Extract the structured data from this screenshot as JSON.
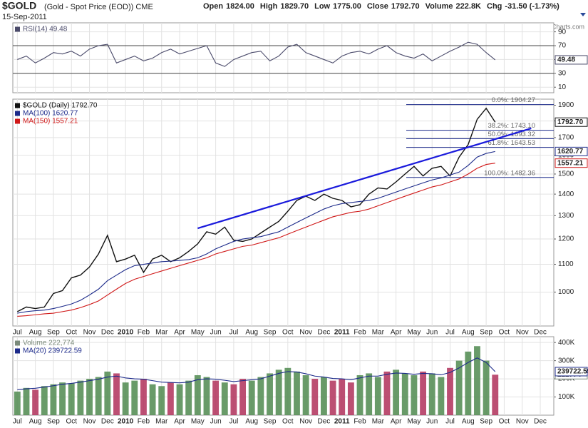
{
  "header": {
    "symbol": "$GOLD",
    "name": "(Gold - Spot Price (EOD)) CME",
    "date": "15-Sep-2011",
    "quote": [
      {
        "label": "Open",
        "value": "1824.00"
      },
      {
        "label": "High",
        "value": "1829.70"
      },
      {
        "label": "Low",
        "value": "1775.00"
      },
      {
        "label": "Close",
        "value": "1792.70"
      },
      {
        "label": "Volume",
        "value": "222.8K"
      },
      {
        "label": "Chg",
        "value": "-31.50 (-1.73%)"
      }
    ],
    "credit": "© StockCharts.com"
  },
  "chart_data": [
    {
      "type": "line",
      "series": [
        {
          "name": "RSI(14) 49.48",
          "color": "#4a4a6a",
          "values": [
            50,
            55,
            45,
            52,
            60,
            58,
            62,
            55,
            65,
            70,
            72,
            45,
            50,
            55,
            48,
            52,
            60,
            65,
            58,
            62,
            66,
            70,
            45,
            40,
            50,
            55,
            60,
            62,
            48,
            55,
            68,
            72,
            60,
            55,
            50,
            45,
            55,
            60,
            62,
            58,
            65,
            70,
            60,
            55,
            52,
            58,
            48,
            55,
            62,
            68,
            75,
            72,
            60,
            49.48,
            null,
            null,
            null,
            null,
            null,
            null
          ]
        }
      ],
      "ylim": [
        2,
        103
      ],
      "yticks": [
        10,
        30,
        50,
        70,
        90
      ],
      "levels": [
        70,
        30
      ],
      "grid": true
    },
    {
      "type": "line",
      "log_scale": true,
      "categories": [
        "Jul",
        null,
        "Aug",
        null,
        "Sep",
        null,
        "Oct",
        null,
        "Nov",
        null,
        "Dec",
        null,
        "2010",
        null,
        "Feb",
        null,
        "Mar",
        null,
        "Apr",
        null,
        "May",
        null,
        "Jun",
        null,
        "Jul",
        null,
        "Aug",
        null,
        "Sep",
        null,
        "Oct",
        null,
        "Nov",
        null,
        "Dec",
        null,
        "2011",
        null,
        "Feb",
        null,
        "Mar",
        null,
        "Apr",
        null,
        "May",
        null,
        "Jun",
        null,
        "Jul",
        null,
        "Aug",
        null,
        "Sep",
        null,
        "Oct",
        null,
        "Nov",
        null,
        "Dec",
        null
      ],
      "series": [
        {
          "name": "$GOLD (Daily) 1792.70",
          "color": "#111111",
          "values": [
            935,
            950,
            945,
            950,
            995,
            1005,
            1050,
            1060,
            1090,
            1140,
            1215,
            1110,
            1120,
            1135,
            1070,
            1120,
            1135,
            1110,
            1125,
            1150,
            1180,
            1230,
            1220,
            1250,
            1195,
            1190,
            1200,
            1225,
            1250,
            1275,
            1320,
            1370,
            1390,
            1370,
            1400,
            1380,
            1370,
            1340,
            1350,
            1400,
            1430,
            1425,
            1460,
            1500,
            1540,
            1490,
            1530,
            1540,
            1490,
            1590,
            1660,
            1810,
            1880,
            1792.7,
            null,
            null,
            null,
            null,
            null,
            null
          ],
          "value_labels": [
            null,
            null,
            null,
            null,
            null,
            null,
            null,
            null,
            null,
            null,
            null,
            null,
            null,
            null,
            null,
            null,
            null,
            null,
            null,
            null,
            null,
            null,
            null,
            null,
            null,
            null,
            null,
            null,
            null,
            null,
            null,
            null,
            null,
            null,
            null,
            null,
            null,
            null,
            null,
            null,
            null,
            null,
            null,
            null,
            null,
            null,
            null,
            null,
            null,
            null,
            null,
            null,
            null,
            "1792.70",
            null,
            null,
            null,
            null,
            null,
            null
          ]
        },
        {
          "name": "MA(100) 1620.77",
          "color": "#1c2a8a",
          "values": [
            930,
            935,
            938,
            940,
            945,
            952,
            960,
            972,
            990,
            1010,
            1040,
            1060,
            1080,
            1095,
            1100,
            1105,
            1110,
            1112,
            1115,
            1118,
            1125,
            1140,
            1160,
            1175,
            1190,
            1200,
            1205,
            1210,
            1220,
            1230,
            1250,
            1270,
            1290,
            1310,
            1330,
            1345,
            1355,
            1360,
            1365,
            1370,
            1380,
            1395,
            1410,
            1425,
            1440,
            1455,
            1470,
            1480,
            1495,
            1510,
            1545,
            1590,
            1610,
            1620.77,
            null,
            null,
            null,
            null,
            null,
            null
          ]
        },
        {
          "name": "MA(150) 1557.21",
          "color": "#d01818",
          "values": [
            920,
            922,
            925,
            928,
            930,
            935,
            940,
            948,
            958,
            970,
            990,
            1010,
            1030,
            1045,
            1055,
            1065,
            1075,
            1085,
            1095,
            1105,
            1115,
            1125,
            1140,
            1150,
            1160,
            1170,
            1175,
            1185,
            1195,
            1205,
            1220,
            1235,
            1250,
            1265,
            1280,
            1295,
            1305,
            1315,
            1320,
            1330,
            1345,
            1360,
            1375,
            1390,
            1405,
            1420,
            1435,
            1445,
            1460,
            1475,
            1500,
            1530,
            1550,
            1557.21,
            null,
            null,
            null,
            null,
            null,
            null
          ]
        }
      ],
      "trendline": {
        "color": "#1a1adc",
        "values": [
          null,
          null,
          null,
          null,
          null,
          null,
          null,
          null,
          null,
          null,
          null,
          null,
          null,
          null,
          null,
          null,
          null,
          null,
          null,
          null,
          1245,
          null,
          null,
          null,
          null,
          null,
          null,
          null,
          null,
          null,
          null,
          null,
          null,
          null,
          null,
          null,
          null,
          null,
          null,
          null,
          null,
          null,
          null,
          null,
          null,
          null,
          null,
          null,
          null,
          null,
          null,
          null,
          null,
          null,
          null,
          null,
          null,
          1755,
          null,
          null
        ]
      },
      "fibonacci": [
        {
          "value": 1904.27,
          "label": "0.0%: 1904.27"
        },
        {
          "value": 1743.1,
          "label": "38.2%: 1743.10"
        },
        {
          "value": 1693.32,
          "label": "50.0%: 1693.32"
        },
        {
          "value": 1643.53,
          "label": "61.8%: 1643.53"
        },
        {
          "value": 1482.36,
          "label": "100.0%: 1482.36"
        }
      ],
      "ylim": [
        890,
        1940
      ],
      "yticks": [
        1000,
        1100,
        1200,
        1300,
        1400,
        1500,
        1600,
        1700,
        1800,
        1900
      ],
      "grid": true
    },
    {
      "type": "bar",
      "up_color": "#4f8a4f",
      "down_color": "#b0305a",
      "categories": [
        "Jul",
        null,
        "Aug",
        null,
        "Sep",
        null,
        "Oct",
        null,
        "Nov",
        null,
        "Dec",
        null,
        "2010",
        null,
        "Feb",
        null,
        "Mar",
        null,
        "Apr",
        null,
        "May",
        null,
        "Jun",
        null,
        "Jul",
        null,
        "Aug",
        null,
        "Sep",
        null,
        "Oct",
        null,
        "Nov",
        null,
        "Dec",
        null,
        "2011",
        null,
        "Feb",
        null,
        "Mar",
        null,
        "Apr",
        null,
        "May",
        null,
        "Jun",
        null,
        "Jul",
        null,
        "Aug",
        null,
        "Sep",
        null,
        "Oct",
        null,
        "Nov",
        null,
        "Dec",
        null
      ],
      "series": [
        {
          "name": "Volume 222,774",
          "color": "#7a8a7a",
          "values": [
            130000,
            150000,
            140000,
            160000,
            170000,
            180000,
            175000,
            190000,
            200000,
            210000,
            240000,
            230000,
            180000,
            190000,
            200000,
            170000,
            160000,
            180000,
            170000,
            190000,
            220000,
            210000,
            190000,
            180000,
            170000,
            200000,
            190000,
            210000,
            230000,
            250000,
            260000,
            240000,
            220000,
            200000,
            210000,
            190000,
            200000,
            180000,
            220000,
            230000,
            210000,
            240000,
            250000,
            230000,
            220000,
            240000,
            230000,
            210000,
            260000,
            300000,
            350000,
            380000,
            300000,
            222774,
            null,
            null,
            null,
            null,
            null,
            null
          ]
        },
        {
          "name": "MA(20) 239722.59",
          "color": "#1c2a8a",
          "type": "line",
          "values": [
            140000,
            145000,
            148000,
            155000,
            162000,
            170000,
            175000,
            182000,
            190000,
            198000,
            210000,
            215000,
            205000,
            200000,
            198000,
            190000,
            182000,
            180000,
            178000,
            182000,
            195000,
            200000,
            198000,
            192000,
            185000,
            190000,
            195000,
            200000,
            215000,
            230000,
            240000,
            238000,
            228000,
            215000,
            210000,
            202000,
            200000,
            195000,
            205000,
            215000,
            215000,
            225000,
            232000,
            230000,
            225000,
            230000,
            228000,
            222000,
            235000,
            260000,
            290000,
            315000,
            290000,
            239722.59,
            null,
            null,
            null,
            null,
            null,
            null
          ]
        }
      ],
      "ylim": [
        0,
        432000
      ],
      "yticks": [
        {
          "value": 100000,
          "label": "100K"
        },
        {
          "value": 200000,
          "label": "200K"
        },
        {
          "value": 300000,
          "label": "300K"
        },
        {
          "value": 400000,
          "label": "400K"
        }
      ],
      "grid": true
    }
  ]
}
